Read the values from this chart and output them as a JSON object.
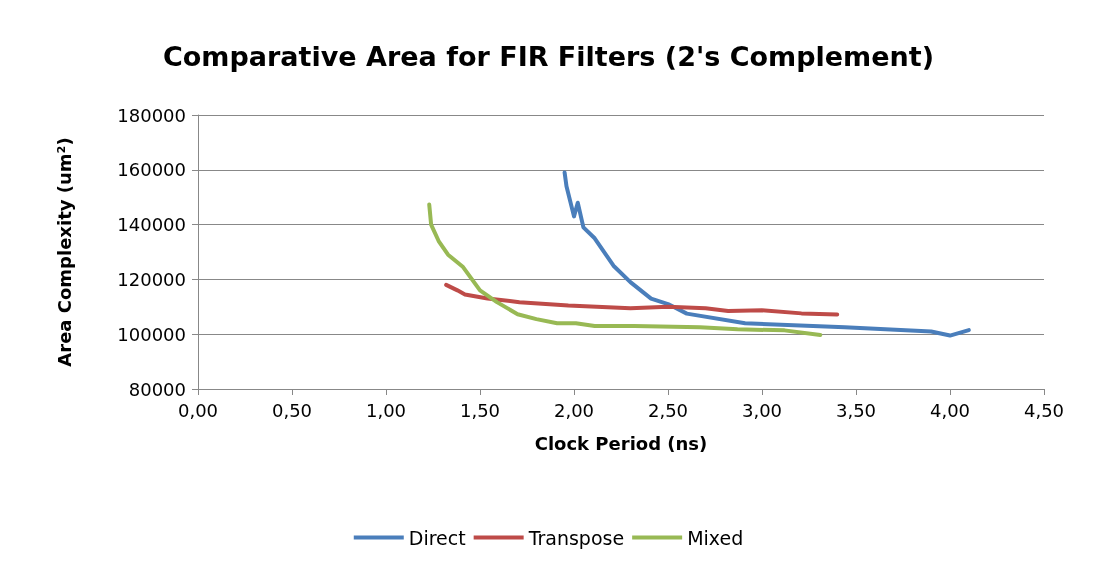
{
  "chart_data": {
    "type": "line",
    "title": "Comparative Area for FIR Filters (2's Complement)",
    "xlabel": "Clock Period (ns)",
    "ylabel": "Area Complexity (um²)",
    "xlim": [
      0,
      4.5
    ],
    "xticks": [
      {
        "value": 0,
        "label": "0,00"
      },
      {
        "value": 0.5,
        "label": "0,50"
      },
      {
        "value": 1,
        "label": "1,00"
      },
      {
        "value": 1.5,
        "label": "1,50"
      },
      {
        "value": 2,
        "label": "2,00"
      },
      {
        "value": 2.5,
        "label": "2,50"
      },
      {
        "value": 3,
        "label": "3,00"
      },
      {
        "value": 3.5,
        "label": "3,50"
      },
      {
        "value": 4,
        "label": "4,00"
      },
      {
        "value": 4.5,
        "label": "4,50"
      }
    ],
    "ylim": [
      80000,
      180000
    ],
    "yticks": [
      80000,
      100000,
      120000,
      140000,
      160000,
      180000
    ],
    "grid": "y",
    "legend": "bottom",
    "marker": "none",
    "line_style": "solid",
    "series": [
      {
        "name": "Direct",
        "color": "#4a7ebb",
        "x": [
          1.95,
          1.96,
          2.0,
          2.02,
          2.05,
          2.11,
          2.21,
          2.3,
          2.41,
          2.5,
          2.6,
          2.91,
          3.44,
          3.9,
          4.0,
          4.1
        ],
        "values": [
          159000,
          154000,
          143000,
          148000,
          139000,
          135000,
          125000,
          119000,
          113000,
          111000,
          107500,
          104000,
          102500,
          101000,
          99500,
          101500
        ]
      },
      {
        "name": "Transpose",
        "color": "#be4b48",
        "x": [
          1.32,
          1.38,
          1.42,
          1.54,
          1.71,
          1.97,
          2.3,
          2.5,
          2.7,
          2.82,
          3.0,
          3.21,
          3.4
        ],
        "values": [
          118000,
          116000,
          114500,
          113000,
          111700,
          110500,
          109500,
          110000,
          109500,
          108500,
          108700,
          107600,
          107200
        ]
      },
      {
        "name": "Mixed",
        "color": "#98b954",
        "x": [
          1.23,
          1.24,
          1.28,
          1.33,
          1.41,
          1.5,
          1.59,
          1.7,
          1.8,
          1.91,
          2.01,
          2.11,
          2.32,
          2.67,
          2.87,
          3.12,
          3.31
        ],
        "values": [
          147300,
          140000,
          134000,
          129000,
          124500,
          116000,
          111700,
          107300,
          105500,
          104000,
          104000,
          103000,
          103000,
          102500,
          101800,
          101400,
          99700
        ]
      }
    ]
  }
}
